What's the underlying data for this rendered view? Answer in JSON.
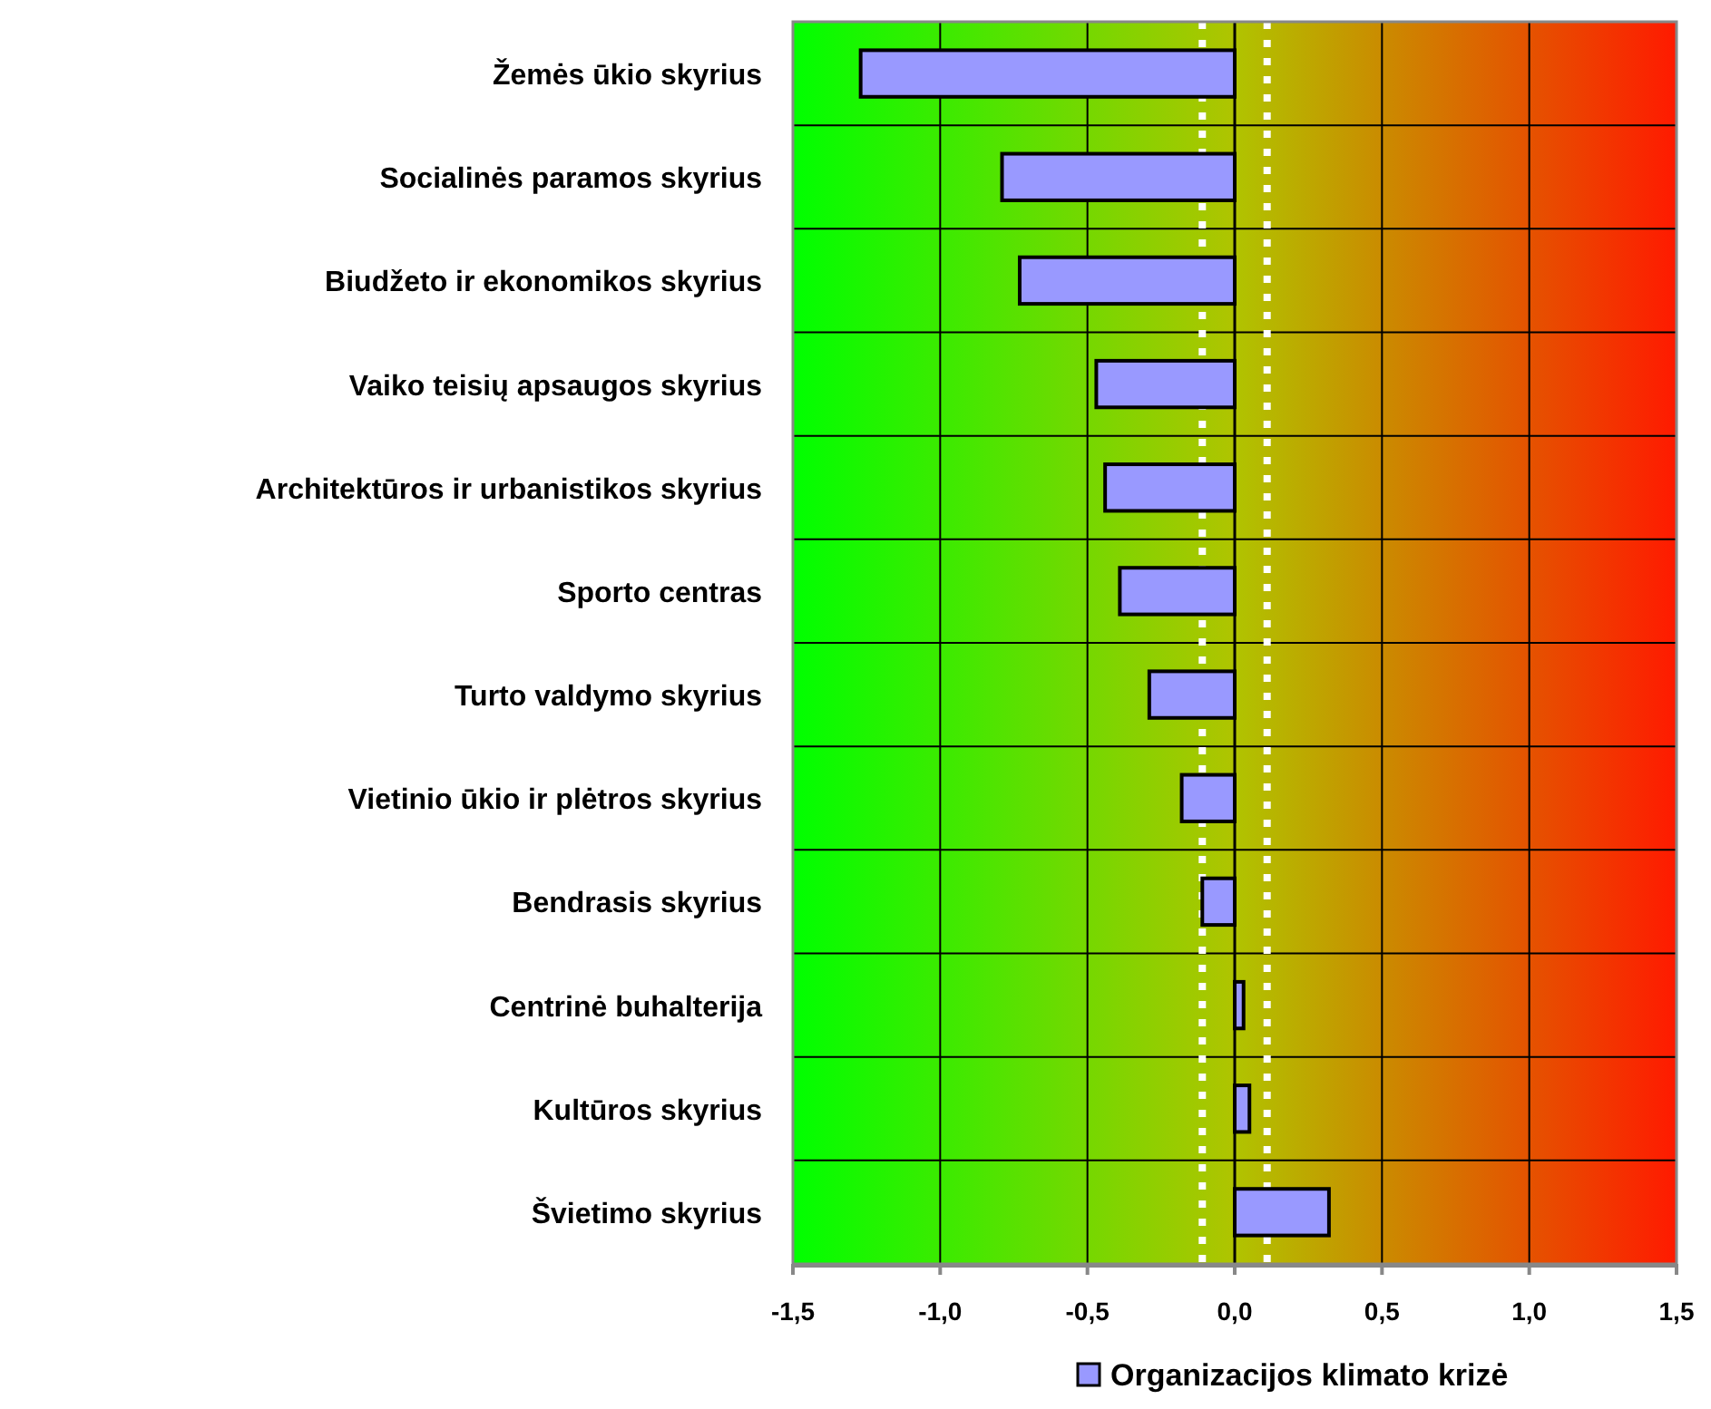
{
  "chart_data": {
    "type": "bar",
    "orientation": "horizontal",
    "categories": [
      "Žemės ūkio skyrius",
      "Socialinės paramos skyrius",
      "Biudžeto ir ekonomikos skyrius",
      "Vaiko teisių apsaugos skyrius",
      "Architektūros ir urbanistikos skyrius",
      "Sporto centras",
      "Turto valdymo skyrius",
      "Vietinio ūkio ir plėtros skyrius",
      "Bendrasis skyrius",
      "Centrinė buhalterija",
      "Kultūros skyrius",
      "Švietimo skyrius"
    ],
    "series": [
      {
        "name": "Organizacijos klimato krizė",
        "color": "#9999ff",
        "values": [
          -1.27,
          -0.79,
          -0.73,
          -0.47,
          -0.44,
          -0.39,
          -0.29,
          -0.18,
          -0.11,
          0.03,
          0.05,
          0.32
        ]
      }
    ],
    "xlim": [
      -1.5,
      1.5
    ],
    "xticks": [
      {
        "value": -1.5,
        "label": "-1,5"
      },
      {
        "value": -1,
        "label": "-1,0"
      },
      {
        "value": -0.5,
        "label": "-0,5"
      },
      {
        "value": 0,
        "label": "0,0"
      },
      {
        "value": 0.5,
        "label": "0,5"
      },
      {
        "value": 1,
        "label": "1,0"
      },
      {
        "value": 1.5,
        "label": "1,5"
      }
    ],
    "ref_lines": [
      {
        "axis": "x",
        "value": -0.11,
        "color": "#ffffff",
        "line_style": "dotted"
      },
      {
        "axis": "x",
        "value": 0.11,
        "color": "#ffffff",
        "line_style": "dotted"
      }
    ],
    "grid": true,
    "legend": "bottom"
  }
}
